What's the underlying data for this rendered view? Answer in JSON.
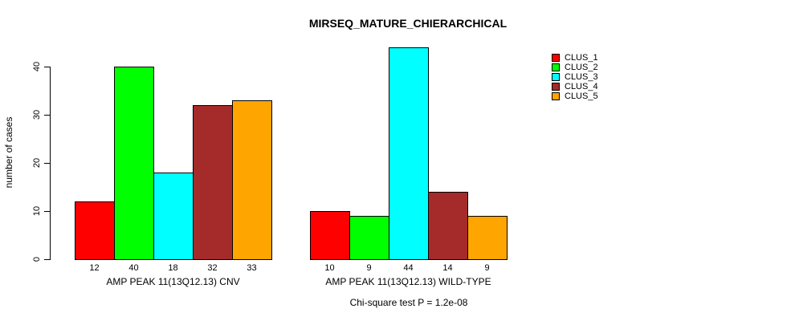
{
  "chart_data": {
    "type": "bar",
    "title": "MIRSEQ_MATURE_CHIERARCHICAL",
    "ylabel": "number of cases",
    "xlabel": "",
    "ylim": [
      0,
      44
    ],
    "yticks": [
      0,
      10,
      20,
      30,
      40
    ],
    "grid": false,
    "legend_position": "right",
    "bar_value_labels_shown": true,
    "series": [
      {
        "name": "CLUS_1",
        "color": "#ff0000"
      },
      {
        "name": "CLUS_2",
        "color": "#00ff00"
      },
      {
        "name": "CLUS_3",
        "color": "#00ffff"
      },
      {
        "name": "CLUS_4",
        "color": "#a52a2a"
      },
      {
        "name": "CLUS_5",
        "color": "#ffa500"
      }
    ],
    "groups": [
      {
        "label": "AMP PEAK 11(13Q12.13) CNV",
        "values": [
          12,
          40,
          18,
          32,
          33
        ]
      },
      {
        "label": "AMP PEAK 11(13Q12.13) WILD-TYPE",
        "values": [
          10,
          9,
          44,
          14,
          9
        ]
      }
    ],
    "note": "Chi-square test P = 1.2e-08"
  }
}
